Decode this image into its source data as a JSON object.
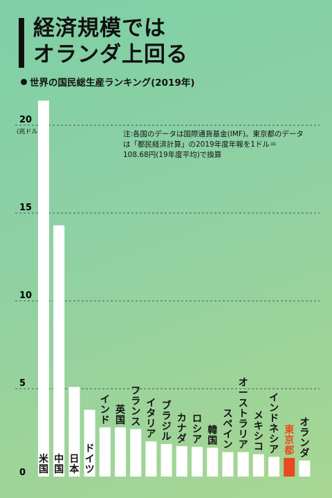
{
  "header": {
    "title_line1": "経済規模では",
    "title_line2": "オランダ上回る",
    "subtitle": "世界の国民総生産ランキング(2019年)"
  },
  "note": {
    "line1": "注:各国のデータは国際通貨基金(IMF)。東京都のデータ",
    "line2": "は「都民経済計算」の2019年度年報を1ドル＝",
    "line3": "108.68円(19年度平均)で換算"
  },
  "colors": {
    "bar": "#ffffff",
    "highlight": "#e84a1e",
    "highlight_label": "#e84a1e",
    "grid": "#333333"
  },
  "chart_data": {
    "type": "bar",
    "title": "世界の国民総生産ランキング(2019年)",
    "ylabel": "(兆ドル)",
    "unit": "(兆ドル)",
    "ylim": [
      0,
      21.5
    ],
    "yticks": [
      0,
      5,
      10,
      15,
      20
    ],
    "grid": "dashed horizontal",
    "highlight_category": "東京都",
    "categories": [
      "米国",
      "中国",
      "日本",
      "ドイツ",
      "インド",
      "英国",
      "フランス",
      "イタリア",
      "ブラジル",
      "カナダ",
      "ロシア",
      "韓国",
      "スペイン",
      "オーストラリア",
      "メキシコ",
      "インドネシア",
      "東京都",
      "オランダ"
    ],
    "values": [
      21.4,
      14.3,
      5.1,
      3.8,
      2.8,
      2.8,
      2.7,
      2.0,
      1.85,
      1.73,
      1.69,
      1.64,
      1.39,
      1.39,
      1.27,
      1.12,
      1.06,
      0.91
    ]
  }
}
